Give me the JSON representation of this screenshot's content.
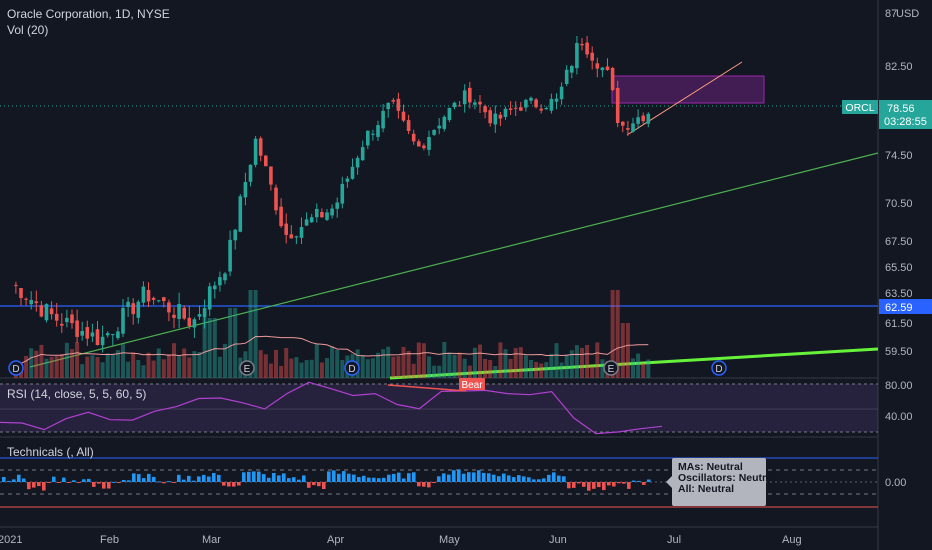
{
  "header": {
    "symbol_line": "Oracle Corporation, 1D, NYSE",
    "vol_label": "Vol (20)",
    "currency": "USD",
    "top_tick": "87"
  },
  "price_badges": {
    "symbol": "ORCL",
    "last_price": "78.56",
    "countdown": "03:28:55",
    "hline_price": "62.59"
  },
  "rsi": {
    "label": "RSI (14, close, 5, 5, 60, 5)",
    "bear_label": "Bear",
    "ticks": [
      "80.00",
      "40.00"
    ]
  },
  "technicals": {
    "label": "Technicals (, All)",
    "tick": "0.00",
    "tooltip": {
      "mas": "MAs:     Neutral",
      "osc": "Oscillators: Neutral",
      "all": "All:  Neutral"
    }
  },
  "earnings_markers": [
    "D",
    "E",
    "D",
    "E",
    "D"
  ],
  "colors": {
    "background": "#131722",
    "up": "#26a69a",
    "down": "#ef5350",
    "green_trend": "#4caf50",
    "bright_trend": "#67f23a",
    "blue_hline": "#2962ff",
    "purple_box": "#9c27b0",
    "rsi_line": "#b040d0",
    "tech_up": "#2196f3",
    "tech_down": "#ef5350"
  },
  "chart_data": [
    {
      "type": "candlestick",
      "title": "Oracle Corporation, 1D, NYSE",
      "y_ticks": [
        "82.50",
        "74.50",
        "70.50",
        "67.50",
        "65.50",
        "63.50",
        "61.50",
        "59.50"
      ],
      "x_ticks": [
        "2021",
        "Feb",
        "Mar",
        "Apr",
        "May",
        "Jun",
        "Jul",
        "Aug"
      ],
      "ylim": [
        57.5,
        87
      ],
      "approx_close_path": [
        {
          "date": "2021-01-04",
          "close": 64.3
        },
        {
          "date": "2021-01-15",
          "close": 62.0
        },
        {
          "date": "2021-01-29",
          "close": 60.3
        },
        {
          "date": "2021-02-12",
          "close": 63.5
        },
        {
          "date": "2021-02-26",
          "close": 61.5
        },
        {
          "date": "2021-03-05",
          "close": 65.8
        },
        {
          "date": "2021-03-12",
          "close": 75.9
        },
        {
          "date": "2021-03-19",
          "close": 68.0
        },
        {
          "date": "2021-03-31",
          "close": 70.2
        },
        {
          "date": "2021-04-09",
          "close": 76.0
        },
        {
          "date": "2021-04-16",
          "close": 79.0
        },
        {
          "date": "2021-04-23",
          "close": 75.0
        },
        {
          "date": "2021-04-30",
          "close": 78.0
        },
        {
          "date": "2021-05-07",
          "close": 80.0
        },
        {
          "date": "2021-05-14",
          "close": 77.5
        },
        {
          "date": "2021-05-21",
          "close": 79.0
        },
        {
          "date": "2021-05-31",
          "close": 79.3
        },
        {
          "date": "2021-06-07",
          "close": 85.0
        },
        {
          "date": "2021-06-14",
          "close": 81.6
        },
        {
          "date": "2021-06-17",
          "close": 77.0
        },
        {
          "date": "2021-06-25",
          "close": 78.56
        }
      ],
      "volume": "bars shown on price pane, green/red by day direction, with moving average line"
    },
    {
      "type": "line",
      "title": "RSI (14, close, 5, 5, 60, 5)",
      "ylim": [
        20,
        90
      ],
      "series": [
        {
          "name": "RSI",
          "values": [
            48,
            46,
            44,
            50,
            56,
            52,
            48,
            58,
            62,
            66,
            70,
            64,
            58,
            74,
            80,
            76,
            72,
            70,
            64,
            60,
            72,
            76,
            74,
            71,
            73,
            72,
            52,
            40,
            38,
            44,
            45
          ]
        }
      ]
    },
    {
      "type": "bar",
      "title": "Technicals (, All)",
      "series": [
        {
          "name": "Technicals",
          "values": [
            0.2,
            -0.3,
            0.1,
            0.1,
            -0.2,
            0.0,
            0.3,
            -0.1,
            0.2,
            0.3,
            -0.1,
            0.4,
            0.3,
            0.2,
            -0.2,
            0.4,
            0.3,
            0.2,
            0.3,
            -0.1,
            0.4,
            0.5,
            0.4,
            0.3,
            0.2,
            0.4,
            -0.2,
            -0.3,
            -0.2,
            0.0
          ]
        }
      ]
    }
  ]
}
